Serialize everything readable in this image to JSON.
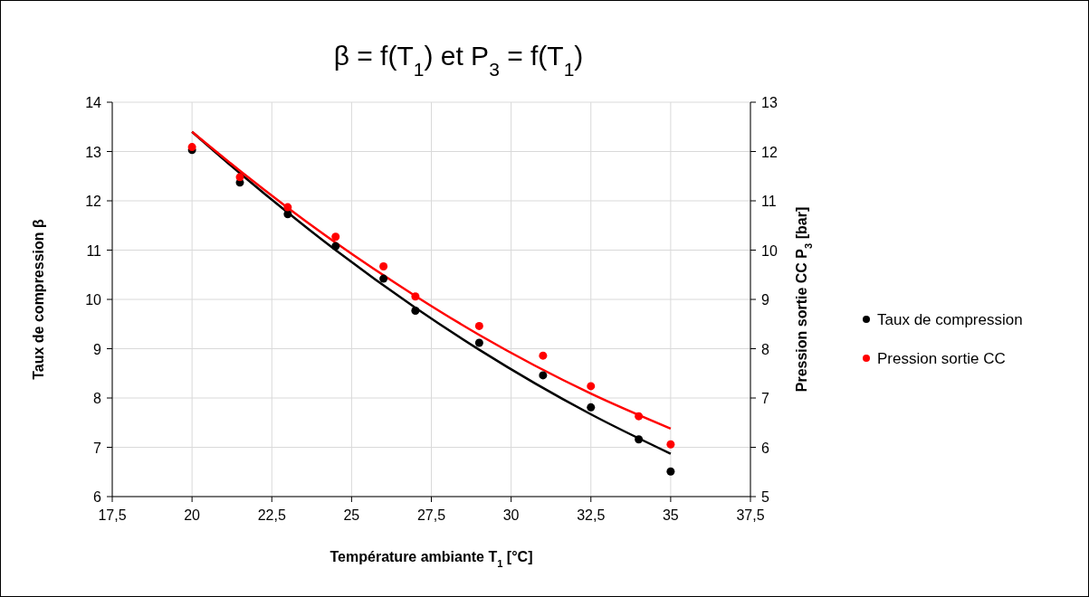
{
  "chart_data": {
    "type": "scatter",
    "title": "β = f(T$_{1}$) et P$_{3}$ = f(T$_{1}$)",
    "xlabel": "Température ambiante T$_{1}$ [°C]",
    "ylabel": "Taux de compression β",
    "y2label": "Pression sortie CC P$_{3}$ [bar]",
    "xlim": [
      17.5,
      37.5
    ],
    "xticks": [
      {
        "value": 17.5,
        "label": "17,5"
      },
      20,
      {
        "value": 22.5,
        "label": "22,5"
      },
      25,
      {
        "value": 27.5,
        "label": "27,5"
      },
      30,
      {
        "value": 32.5,
        "label": "32,5"
      },
      35,
      {
        "value": 37.5,
        "label": "37,5"
      }
    ],
    "ylim": [
      6,
      14
    ],
    "yticks": [
      6,
      7,
      8,
      9,
      10,
      11,
      12,
      13,
      14
    ],
    "y2lim": [
      5,
      13
    ],
    "y2ticks": [
      5,
      6,
      7,
      8,
      9,
      10,
      11,
      12,
      13
    ],
    "grid": true,
    "legend": "right",
    "marker": "circle",
    "x": [
      20,
      21.5,
      23,
      24.5,
      26,
      27,
      29,
      31,
      32.5,
      34,
      35
    ],
    "series": [
      {
        "name": "Taux de compression",
        "color": "#000000",
        "values": [
          13.03,
          12.37,
          11.73,
          11.08,
          10.42,
          9.77,
          9.12,
          8.46,
          7.81,
          7.16,
          6.51
        ]
      },
      {
        "name": "Pression sortie CC",
        "color": "#ff0000",
        "axis": "y2",
        "values": [
          12.09,
          11.48,
          10.87,
          10.27,
          9.67,
          9.06,
          8.46,
          7.86,
          7.24,
          6.63,
          6.06
        ]
      },
      {
        "type": "line",
        "color": "#000000",
        "marker": "none",
        "x": [
          20,
          21.5,
          23,
          24.5,
          27,
          29,
          32.5,
          35
        ],
        "values": [
          13.4,
          12.56,
          11.76,
          11.0,
          9.83,
          8.98,
          7.67,
          6.87
        ]
      },
      {
        "type": "line",
        "color": "#ff0000",
        "marker": "none",
        "axis": "y2",
        "x": [
          20,
          21.5,
          23,
          24.5,
          27,
          29,
          32.5,
          35
        ],
        "values": [
          12.4,
          11.61,
          10.86,
          10.15,
          9.07,
          8.28,
          7.09,
          6.38
        ]
      }
    ]
  }
}
